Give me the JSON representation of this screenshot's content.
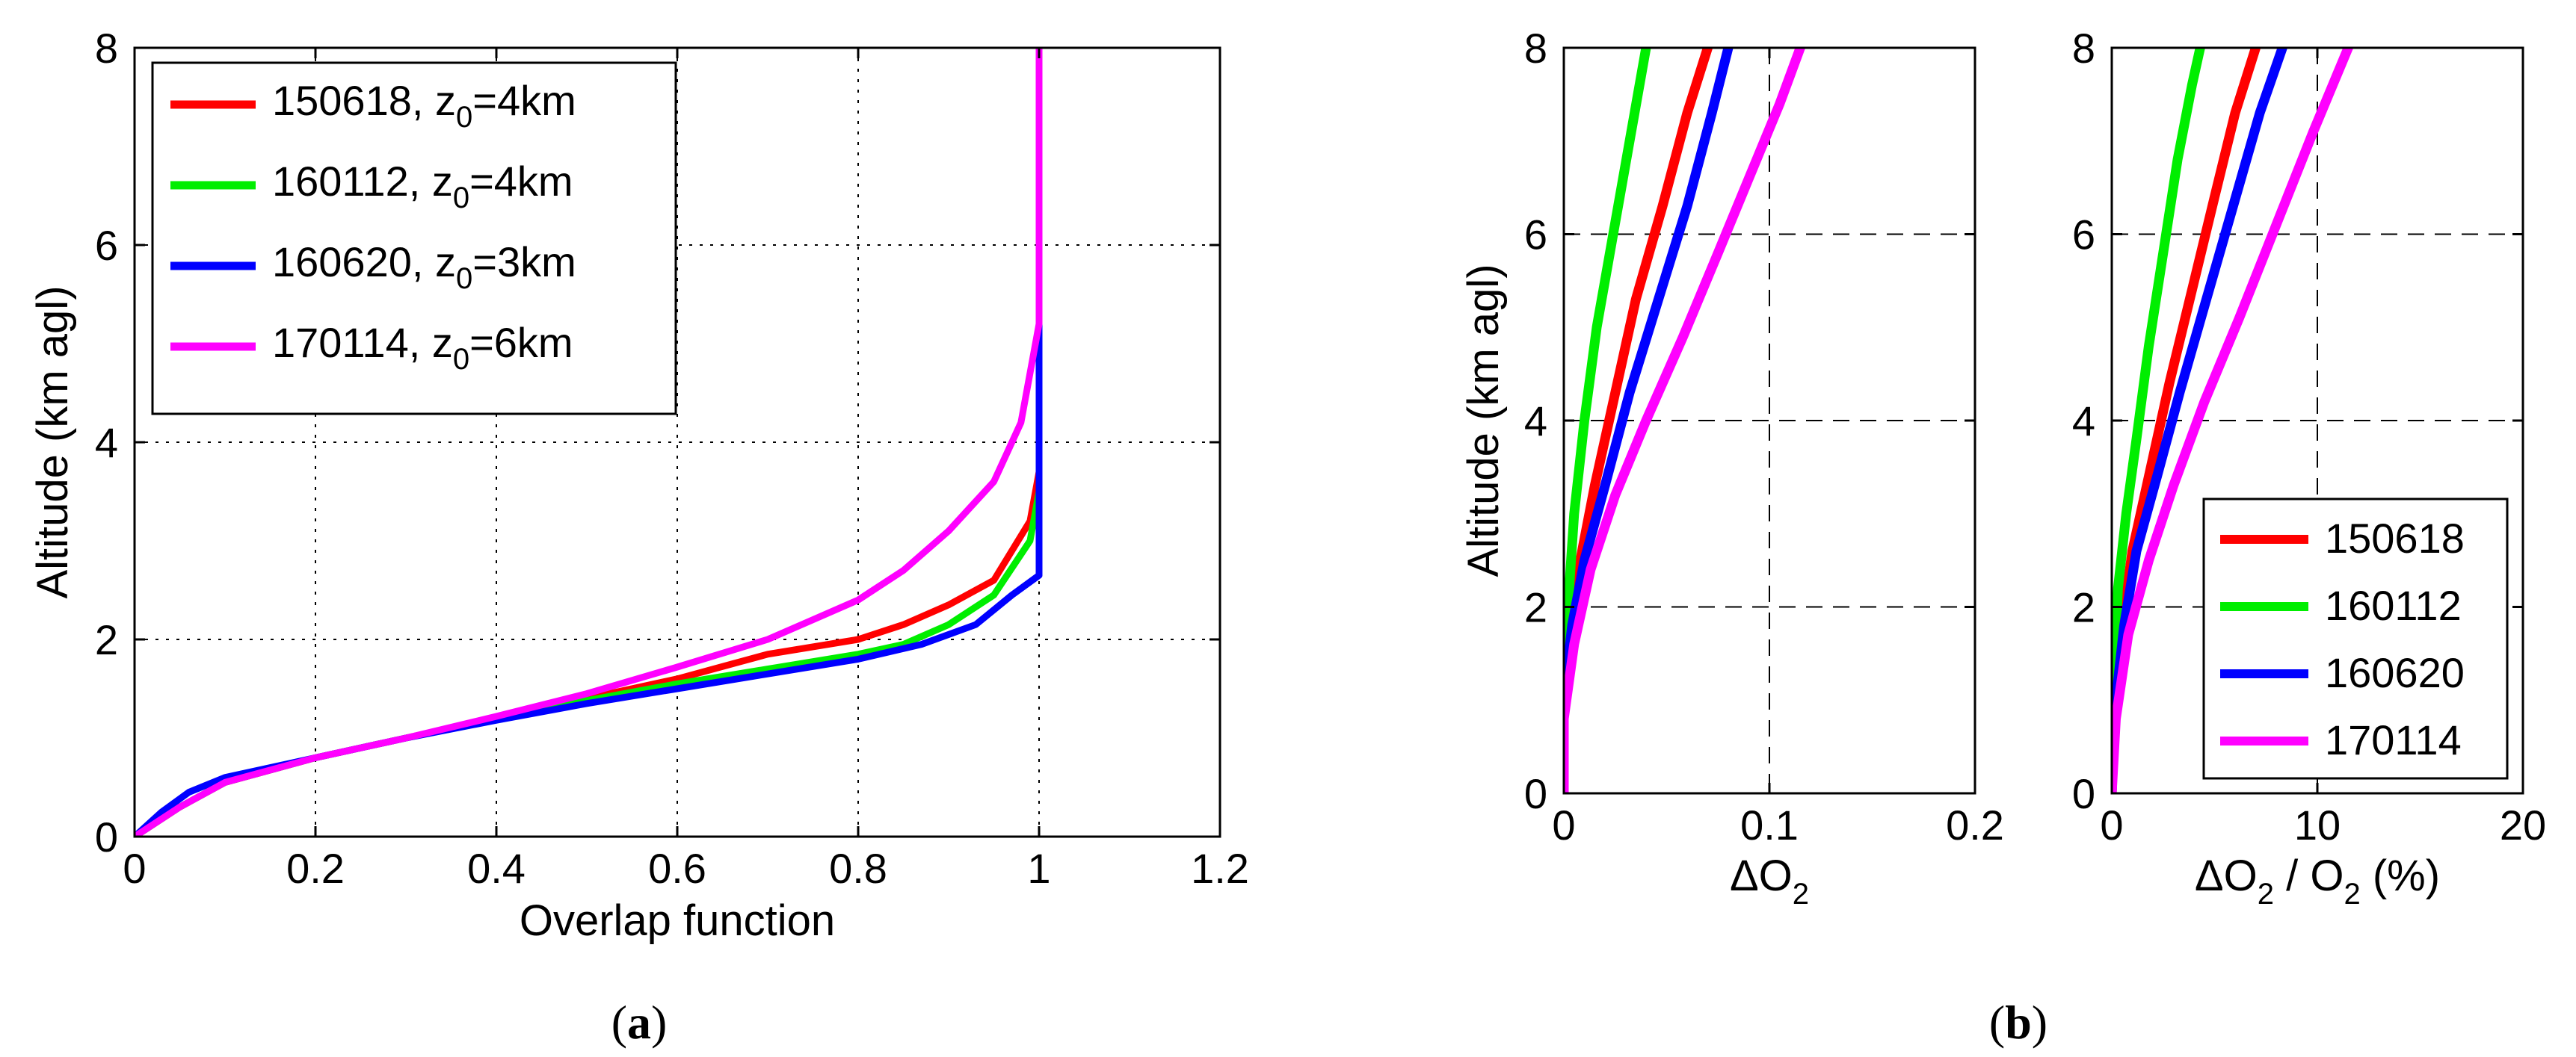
{
  "chart_data": [
    {
      "panel": "a",
      "type": "line",
      "xlabel": "Overlap function",
      "ylabel": "Altitude (km agl)",
      "xlim": [
        0,
        1.2
      ],
      "ylim": [
        0,
        8
      ],
      "xticks": [
        "0",
        "0.2",
        "0.4",
        "0.6",
        "0.8",
        "1",
        "1.2"
      ],
      "yticks": [
        "0",
        "2",
        "4",
        "6",
        "8"
      ],
      "grid": "dotted",
      "legend_position": "top-left",
      "series": [
        {
          "name": "150618",
          "z0_label": "z",
          "z0_sub": "0",
          "z0_value": "=4km",
          "color": "#ff0000",
          "x": [
            0,
            0.05,
            0.1,
            0.2,
            0.3,
            0.4,
            0.5,
            0.6,
            0.7,
            0.8,
            0.85,
            0.9,
            0.95,
            0.99,
            1.0,
            1.0
          ],
          "y": [
            0,
            0.3,
            0.55,
            0.8,
            1.0,
            1.2,
            1.4,
            1.6,
            1.85,
            2.0,
            2.15,
            2.35,
            2.6,
            3.2,
            3.7,
            8
          ]
        },
        {
          "name": "160112",
          "z0_label": "z",
          "z0_sub": "0",
          "z0_value": "=4km",
          "color": "#00ee00",
          "x": [
            0,
            0.05,
            0.1,
            0.2,
            0.3,
            0.4,
            0.5,
            0.6,
            0.7,
            0.8,
            0.85,
            0.9,
            0.95,
            0.99,
            1.0,
            1.0
          ],
          "y": [
            0,
            0.3,
            0.55,
            0.8,
            1.0,
            1.2,
            1.38,
            1.55,
            1.7,
            1.85,
            1.95,
            2.15,
            2.45,
            3.0,
            3.5,
            8
          ]
        },
        {
          "name": "160620",
          "z0_label": "z",
          "z0_sub": "0",
          "z0_value": "=3km",
          "color": "#0000ff",
          "x": [
            0,
            0.03,
            0.06,
            0.1,
            0.2,
            0.3,
            0.4,
            0.5,
            0.6,
            0.7,
            0.8,
            0.87,
            0.93,
            0.97,
            1.0,
            1.0,
            1.0
          ],
          "y": [
            0,
            0.25,
            0.45,
            0.6,
            0.8,
            1.0,
            1.18,
            1.35,
            1.5,
            1.65,
            1.8,
            1.95,
            2.15,
            2.45,
            2.65,
            5.2,
            8
          ]
        },
        {
          "name": "170114",
          "z0_label": "z",
          "z0_sub": "0",
          "z0_value": "=6km",
          "color": "#ff00ff",
          "x": [
            0,
            0.05,
            0.1,
            0.2,
            0.3,
            0.4,
            0.5,
            0.6,
            0.7,
            0.75,
            0.8,
            0.85,
            0.9,
            0.95,
            0.98,
            1.0,
            1.0
          ],
          "y": [
            0,
            0.3,
            0.55,
            0.8,
            1.0,
            1.22,
            1.45,
            1.72,
            2.0,
            2.2,
            2.4,
            2.7,
            3.1,
            3.6,
            4.2,
            5.2,
            8
          ]
        }
      ]
    },
    {
      "panel": "b-left",
      "type": "line",
      "xlabel": "ΔO",
      "xlabel_sub": "2",
      "ylabel": "Altitude (km agl)",
      "xlim": [
        0,
        0.2
      ],
      "ylim": [
        0,
        8
      ],
      "xticks": [
        "0",
        "0.1",
        "0.2"
      ],
      "yticks": [
        "0",
        "2",
        "4",
        "6",
        "8"
      ],
      "grid": "dashed",
      "series": [
        {
          "name": "150618",
          "color": "#ff0000",
          "x": [
            0,
            0,
            0.003,
            0.008,
            0.015,
            0.025,
            0.035,
            0.048,
            0.06,
            0.07
          ],
          "y": [
            0,
            1.0,
            1.8,
            2.5,
            3.3,
            4.3,
            5.3,
            6.3,
            7.3,
            8.0
          ]
        },
        {
          "name": "160112",
          "color": "#00ee00",
          "x": [
            0,
            0,
            0.002,
            0.005,
            0.01,
            0.016,
            0.024,
            0.032,
            0.04
          ],
          "y": [
            0,
            1.0,
            2.0,
            3.0,
            4.0,
            5.0,
            6.0,
            7.0,
            8.0
          ]
        },
        {
          "name": "160620",
          "color": "#0000ff",
          "x": [
            0,
            0,
            0.004,
            0.01,
            0.02,
            0.032,
            0.046,
            0.06,
            0.072,
            0.08
          ],
          "y": [
            0,
            1.0,
            1.8,
            2.5,
            3.3,
            4.3,
            5.3,
            6.3,
            7.3,
            8.0
          ]
        },
        {
          "name": "170114",
          "color": "#ff00ff",
          "x": [
            0,
            0,
            0.005,
            0.013,
            0.025,
            0.04,
            0.058,
            0.075,
            0.09,
            0.105,
            0.115
          ],
          "y": [
            0,
            0.8,
            1.6,
            2.4,
            3.2,
            4.0,
            4.9,
            5.8,
            6.6,
            7.4,
            8.0
          ]
        }
      ]
    },
    {
      "panel": "b-right",
      "type": "line",
      "xlabel": "ΔO",
      "xlabel_sub": "2",
      "xlabel_mid": " / O",
      "xlabel_sub2": "2",
      "xlabel_end": " (%)",
      "xlim": [
        0,
        20
      ],
      "ylim": [
        0,
        8
      ],
      "xticks": [
        "0",
        "10",
        "20"
      ],
      "yticks": [
        "0",
        "2",
        "4",
        "6",
        "8"
      ],
      "grid": "dashed",
      "legend_position": "bottom-right",
      "series": [
        {
          "name": "150618",
          "color": "#ff0000",
          "x": [
            0,
            0.1,
            0.5,
            1.0,
            1.8,
            2.8,
            3.9,
            5.0,
            6.0,
            7.0
          ],
          "y": [
            0,
            0.8,
            1.8,
            2.6,
            3.4,
            4.4,
            5.4,
            6.4,
            7.3,
            8.0
          ]
        },
        {
          "name": "160112",
          "color": "#00ee00",
          "x": [
            0,
            0.1,
            0.3,
            0.7,
            1.2,
            1.8,
            2.5,
            3.2,
            3.9,
            4.3
          ],
          "y": [
            0,
            1.2,
            2.2,
            3.0,
            3.8,
            4.8,
            5.8,
            6.8,
            7.6,
            8.0
          ]
        },
        {
          "name": "160620",
          "color": "#0000ff",
          "x": [
            0,
            0.1,
            0.6,
            1.2,
            2.2,
            3.3,
            4.6,
            5.9,
            7.2,
            8.3
          ],
          "y": [
            0,
            0.8,
            1.8,
            2.6,
            3.4,
            4.3,
            5.3,
            6.3,
            7.3,
            8.0
          ]
        },
        {
          "name": "170114",
          "color": "#ff00ff",
          "x": [
            0,
            0.2,
            0.8,
            1.8,
            3.0,
            4.5,
            6.2,
            8.0,
            9.8,
            11.5
          ],
          "y": [
            0,
            0.8,
            1.7,
            2.5,
            3.3,
            4.2,
            5.1,
            6.1,
            7.1,
            8.0
          ]
        }
      ]
    }
  ],
  "labels": {
    "panel_a": {
      "open": "(",
      "letter": "a",
      "close": ")"
    },
    "panel_b": {
      "open": "(",
      "letter": "b",
      "close": ")"
    }
  }
}
